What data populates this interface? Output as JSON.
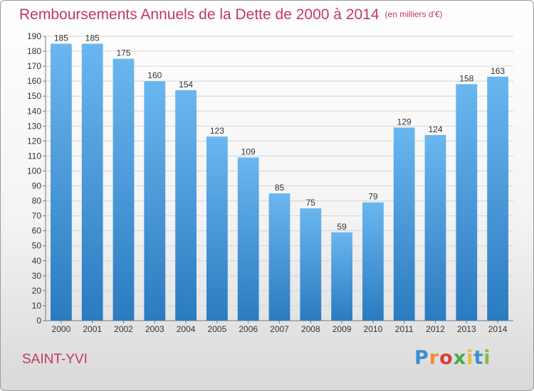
{
  "title": "Remboursements Annuels de la Dette de 2000 à 2014",
  "subtitle": "(en milliers d'€)",
  "town": "SAINT-YVI",
  "logo": {
    "letters": [
      "P",
      "r",
      "o",
      "x",
      "i",
      "t",
      "i"
    ],
    "colors": [
      "#3b8fd0",
      "#e8902a",
      "#d8403a",
      "#4aa84a",
      "#e4c033",
      "#3b8fd0",
      "#7fbf3f"
    ]
  },
  "colors": {
    "bar_top": "#6ab6f0",
    "bar_bottom": "#2b7bc0",
    "text": "#c2395c"
  },
  "chart_data": {
    "type": "bar",
    "categories": [
      "2000",
      "2001",
      "2002",
      "2003",
      "2004",
      "2005",
      "2006",
      "2007",
      "2008",
      "2009",
      "2010",
      "2011",
      "2012",
      "2013",
      "2014"
    ],
    "values": [
      185,
      185,
      175,
      160,
      154,
      123,
      109,
      85,
      75,
      59,
      79,
      129,
      124,
      158,
      163
    ],
    "ylim": [
      0,
      190
    ],
    "yticks": [
      0,
      10,
      20,
      30,
      40,
      50,
      60,
      70,
      80,
      90,
      100,
      110,
      120,
      130,
      140,
      150,
      160,
      170,
      180,
      190
    ],
    "grid": true
  }
}
